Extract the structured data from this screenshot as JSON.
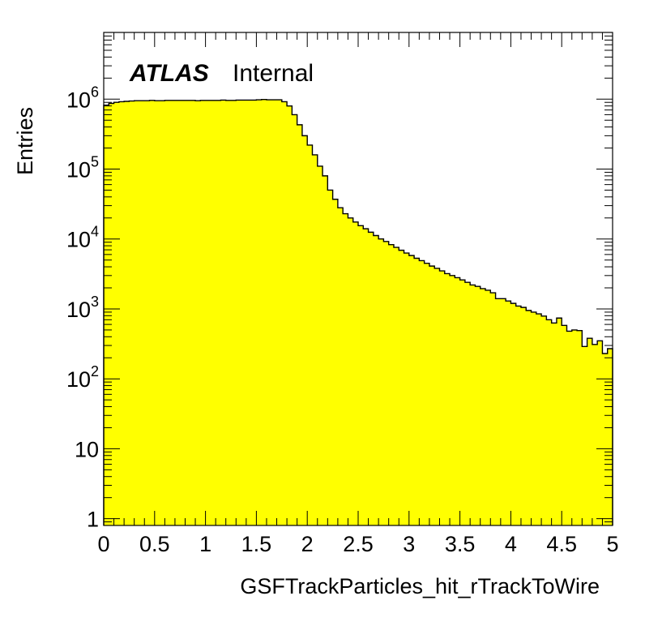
{
  "chart_data": {
    "type": "histogram",
    "xlabel": "GSFTrackParticles_hit_rTrackToWire",
    "ylabel": "Entries",
    "ylog": true,
    "xlim": [
      0,
      5
    ],
    "ylim": [
      0.8,
      9000000
    ],
    "bin_width": 0.05,
    "fill_color": "#ffff00",
    "line_color": "#000000",
    "annotation": {
      "bold": "ATLAS",
      "text": "Internal"
    },
    "x_ticks": [
      "0",
      "0.5",
      "1",
      "1.5",
      "2",
      "2.5",
      "3",
      "3.5",
      "4",
      "4.5",
      "5"
    ],
    "y_ticks": [
      {
        "base": "1",
        "exp": ""
      },
      {
        "base": "10",
        "exp": ""
      },
      {
        "base": "10",
        "exp": "2"
      },
      {
        "base": "10",
        "exp": "3"
      },
      {
        "base": "10",
        "exp": "4"
      },
      {
        "base": "10",
        "exp": "5"
      },
      {
        "base": "10",
        "exp": "6"
      }
    ],
    "y_tick_values": [
      1,
      10,
      100,
      1000,
      10000,
      100000,
      1000000
    ],
    "values": [
      820000,
      870000,
      900000,
      920000,
      930000,
      940000,
      950000,
      950000,
      950000,
      960000,
      950000,
      950000,
      960000,
      960000,
      960000,
      960000,
      960000,
      960000,
      950000,
      960000,
      960000,
      960000,
      960000,
      970000,
      960000,
      960000,
      970000,
      970000,
      970000,
      970000,
      980000,
      990000,
      980000,
      980000,
      980000,
      920000,
      800000,
      600000,
      430000,
      300000,
      220000,
      160000,
      110000,
      80000,
      50000,
      37000,
      28000,
      23000,
      20000,
      17500,
      15500,
      14000,
      12500,
      11200,
      10000,
      9200,
      8300,
      7600,
      6900,
      6300,
      5800,
      5300,
      4900,
      4500,
      4100,
      3800,
      3500,
      3200,
      3000,
      2800,
      2600,
      2400,
      2200,
      2100,
      1950,
      1850,
      1700,
      1400,
      1400,
      1300,
      1200,
      1100,
      1050,
      950,
      900,
      850,
      790,
      700,
      630,
      740,
      580,
      480,
      500,
      490,
      290,
      380,
      310,
      350,
      230,
      270
    ]
  }
}
